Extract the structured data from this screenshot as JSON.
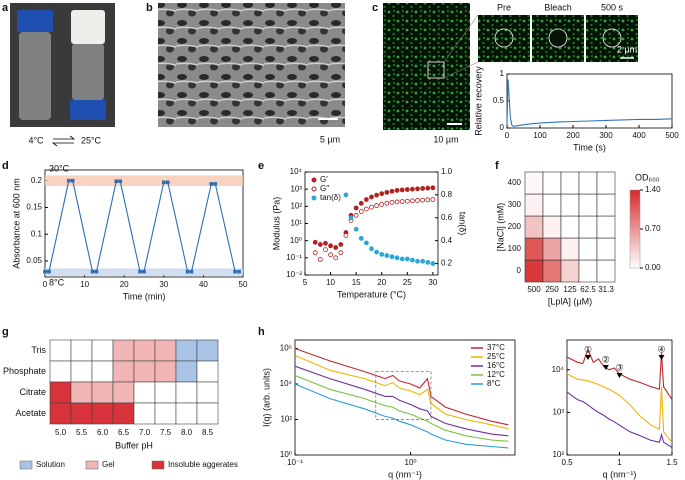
{
  "panel_letters": [
    "a",
    "b",
    "c",
    "d",
    "e",
    "f",
    "g",
    "h"
  ],
  "images": {
    "a_left_temp": "4°C",
    "a_right_temp": "25°C",
    "b_scale": "5 µm",
    "c_scale": "10 µm",
    "c_frames": [
      "Pre",
      "Bleach",
      "500 s"
    ],
    "c_frame_scale": "2 µm"
  },
  "chart_data": [
    {
      "type": "line",
      "x_label": "Time (s)",
      "y_label": "Relative recovery",
      "x": [
        0,
        3,
        6,
        10,
        15,
        20,
        30,
        50,
        75,
        100,
        150,
        200,
        250,
        300,
        350,
        400,
        450,
        500
      ],
      "series": [
        {
          "color": "#2e75c0",
          "values": [
            0.05,
            0.9,
            0.6,
            0.2,
            0.05,
            0.03,
            0.04,
            0.06,
            0.08,
            0.09,
            0.11,
            0.12,
            0.13,
            0.14,
            0.15,
            0.16,
            0.16,
            0.17
          ]
        }
      ],
      "xlim": [
        0,
        500
      ],
      "ylim": [
        0,
        1
      ],
      "xticks": [
        0,
        100,
        200,
        300,
        400,
        500
      ],
      "yticks": [
        0,
        0.5,
        1
      ]
    },
    {
      "type": "line",
      "x_label": "Time (min)",
      "y_label": "Absorbance at 600 nm",
      "markers": true,
      "x": [
        0,
        1,
        6,
        7,
        12,
        13,
        18,
        19,
        24,
        25,
        30,
        31,
        36,
        37,
        42,
        43,
        48,
        49
      ],
      "series": [
        {
          "color": "#2e6db4",
          "values": [
            0.03,
            0.03,
            0.2,
            0.2,
            0.03,
            0.03,
            0.199,
            0.199,
            0.03,
            0.03,
            0.197,
            0.197,
            0.03,
            0.03,
            0.194,
            0.194,
            0.03,
            0.03
          ]
        }
      ],
      "bands": [
        {
          "range": [
            0.19,
            0.21
          ],
          "color": "#f6c9b0",
          "label": "30°C"
        },
        {
          "range": [
            0.022,
            0.036
          ],
          "color": "#c5d5ee",
          "label": "8°C"
        }
      ],
      "xlim": [
        0,
        50
      ],
      "ylim": [
        0.02,
        0.22
      ],
      "xticks": [
        0,
        10,
        20,
        30,
        40,
        50
      ],
      "yticks": [
        0.05,
        0.1,
        0.15,
        0.2
      ]
    },
    {
      "type": "scatter",
      "x_label": "Temperature (°C)",
      "y_label": "Modulus (Pa)",
      "y2_label": "tan(δ)",
      "yscale": "log",
      "legend": "upper left",
      "x": [
        7,
        8,
        9,
        10,
        11,
        12,
        13,
        14,
        15,
        16,
        17,
        18,
        19,
        20,
        21,
        22,
        23,
        24,
        25,
        26,
        27,
        28,
        29,
        30
      ],
      "series": [
        {
          "name": "G′",
          "color": "#b22222",
          "marker": "filled",
          "values": [
            0.8,
            0.6,
            0.7,
            0.5,
            0.4,
            0.6,
            3,
            30,
            80,
            150,
            250,
            350,
            450,
            550,
            650,
            750,
            850,
            900,
            950,
            1000,
            1050,
            1100,
            1150,
            1200
          ]
        },
        {
          "name": "G″",
          "color": "#b22222",
          "marker": "open",
          "values": [
            0.2,
            0.08,
            0.3,
            0.15,
            0.1,
            0.2,
            2,
            15,
            30,
            50,
            70,
            90,
            110,
            130,
            150,
            170,
            180,
            190,
            200,
            210,
            220,
            230,
            240,
            250
          ]
        },
        {
          "name": "tan(δ)",
          "color": "#2aa7d6",
          "marker": "filled",
          "axis": "y2",
          "values": [
            null,
            null,
            null,
            null,
            null,
            null,
            0.8,
            0.6,
            0.5,
            0.42,
            0.38,
            0.33,
            0.3,
            0.28,
            0.27,
            0.26,
            0.25,
            0.24,
            0.24,
            0.23,
            0.22,
            0.22,
            0.21,
            0.2
          ]
        }
      ],
      "xlim": [
        5,
        31
      ],
      "ylim": [
        0.01,
        10000
      ],
      "y2lim": [
        0.1,
        1.0
      ],
      "xticks": [
        5,
        10,
        15,
        20,
        25,
        30
      ],
      "yticks": [
        {
          "value": 0.01,
          "label": "10⁻²"
        },
        {
          "value": 0.1,
          "label": "10⁻¹"
        },
        {
          "value": 1,
          "label": "10⁰"
        },
        {
          "value": 10,
          "label": "10¹"
        },
        {
          "value": 100,
          "label": "10²"
        },
        {
          "value": 1000,
          "label": "10³"
        },
        {
          "value": 10000,
          "label": "10⁴"
        }
      ],
      "y2ticks": [
        0.2,
        0.4,
        0.6,
        0.8,
        {
          "value": 1,
          "label": "1.0"
        }
      ]
    },
    {
      "type": "heatmap",
      "x_label": "[LplA] (µM)",
      "y_label": "[NaCl] (mM)",
      "colorbar_label": "OD₆₀₀",
      "x_categories": [
        "500",
        "250",
        "125",
        "62.5",
        "31.3"
      ],
      "y_categories": [
        "0",
        "100",
        "200",
        "300",
        "400"
      ],
      "values": [
        [
          1.3,
          0.9,
          0.3,
          0,
          0
        ],
        [
          1.1,
          0.6,
          0.1,
          0,
          0
        ],
        [
          0.4,
          0.1,
          0,
          0,
          0
        ],
        [
          0.1,
          0,
          0,
          0,
          0
        ],
        [
          0.05,
          0,
          0,
          0,
          0
        ]
      ],
      "colormap": [
        "#ffffff",
        "#d62a2a"
      ],
      "clim": [
        0,
        1.4
      ],
      "cticks": [
        {
          "value": 0,
          "label": "0.00"
        },
        {
          "value": 0.7,
          "label": "0.70"
        },
        {
          "value": 1.4,
          "label": "1.40"
        }
      ]
    },
    {
      "type": "matrix",
      "x_label": "Buffer pH",
      "categories": [
        "5.0",
        "5.5",
        "6.0",
        "6.5",
        "7.0",
        "7.5",
        "8.0",
        "8.5"
      ],
      "rows": [
        "Tris",
        "Phosphate",
        "Citrate",
        "Acetate"
      ],
      "legend": [
        {
          "name": "Solution",
          "color": "#a9c4e6"
        },
        {
          "name": "Gel",
          "color": "#f2b5b5"
        },
        {
          "name": "Insoluble aggerates",
          "color": "#d8323a"
        }
      ],
      "values": [
        [
          null,
          null,
          null,
          1,
          1,
          1,
          0,
          0
        ],
        [
          null,
          null,
          null,
          1,
          1,
          1,
          0,
          null
        ],
        [
          2,
          1,
          1,
          1,
          null,
          null,
          null,
          null
        ],
        [
          2,
          2,
          2,
          2,
          null,
          null,
          null,
          null
        ]
      ]
    },
    {
      "type": "line",
      "x_label": "q (nm⁻¹)",
      "y_label": "I(q) (arb. units)",
      "xscale": "log",
      "yscale": "log",
      "legend": "upper right",
      "x": [
        0.1,
        0.2,
        0.4,
        0.6,
        0.7,
        0.8,
        1,
        1.2,
        1.4,
        1.5,
        2,
        3,
        5,
        7
      ],
      "series": [
        {
          "name": "37°C",
          "color": "#c0282e",
          "values": [
            1000000,
            200000,
            50000,
            20000,
            30000,
            15000,
            10000,
            6000,
            20000,
            2000,
            500,
            200,
            80,
            50
          ]
        },
        {
          "name": "25°C",
          "color": "#f0b400",
          "values": [
            400000,
            60000,
            20000,
            8000,
            12000,
            6000,
            4000,
            2500,
            5000,
            800,
            200,
            100,
            50,
            30
          ]
        },
        {
          "name": "16°C",
          "color": "#7030a0",
          "values": [
            100000,
            20000,
            5000,
            2000,
            2000,
            1200,
            700,
            400,
            300,
            150,
            60,
            30,
            15,
            12
          ]
        },
        {
          "name": "12°C",
          "color": "#7cc242",
          "values": [
            30000,
            5000,
            1500,
            600,
            500,
            300,
            200,
            120,
            80,
            60,
            25,
            12,
            7,
            6
          ]
        },
        {
          "name": "8°C",
          "color": "#2b9ed8",
          "values": [
            10000,
            1500,
            400,
            150,
            120,
            80,
            50,
            30,
            20,
            15,
            7,
            4,
            3,
            2.5
          ]
        }
      ],
      "xlim": [
        0.1,
        8
      ],
      "ylim": [
        1,
        3000000
      ],
      "xticks": [
        {
          "value": 0.1,
          "label": "10⁻¹"
        },
        {
          "value": 1,
          "label": "10⁰"
        }
      ],
      "yticks": [
        {
          "value": 1,
          "label": "10⁰"
        },
        {
          "value": 100,
          "label": "10²"
        },
        {
          "value": 10000,
          "label": "10⁴"
        },
        {
          "value": 1000000,
          "label": "10⁶"
        }
      ]
    },
    {
      "type": "line",
      "x_label": "q (nm⁻¹)",
      "yscale": "log",
      "x": [
        0.5,
        0.6,
        0.65,
        0.7,
        0.75,
        0.8,
        0.85,
        0.9,
        0.95,
        1.0,
        1.1,
        1.2,
        1.3,
        1.38,
        1.4,
        1.42,
        1.5
      ],
      "series": [
        {
          "color": "#c0282e",
          "values": [
            20000,
            15000,
            14000,
            30000,
            15000,
            18000,
            12000,
            10000,
            11000,
            8000,
            6000,
            5000,
            4000,
            3500,
            25000,
            4000,
            2000
          ]
        },
        {
          "color": "#f0b400",
          "values": [
            8000,
            6000,
            5800,
            5500,
            5000,
            4500,
            4000,
            3500,
            3000,
            2500,
            1500,
            800,
            500,
            400,
            4000,
            350,
            200
          ]
        },
        {
          "color": "#7030a0",
          "values": [
            3000,
            2000,
            1800,
            1500,
            1200,
            1000,
            850,
            700,
            600,
            500,
            350,
            280,
            220,
            200,
            300,
            200,
            150
          ]
        }
      ],
      "annotations": [
        {
          "label": "①",
          "x": 0.7
        },
        {
          "label": "②",
          "x": 0.87
        },
        {
          "label": "③",
          "x": 1.0
        },
        {
          "label": "④",
          "x": 1.4
        }
      ],
      "xlim": [
        0.5,
        1.5
      ],
      "ylim": [
        100,
        50000
      ],
      "xticks": [
        0.5,
        1,
        1.5
      ],
      "yticks": [
        {
          "value": 100,
          "label": "10²"
        },
        {
          "value": 1000,
          "label": "10³"
        },
        {
          "value": 10000,
          "label": "10⁴"
        }
      ]
    }
  ]
}
